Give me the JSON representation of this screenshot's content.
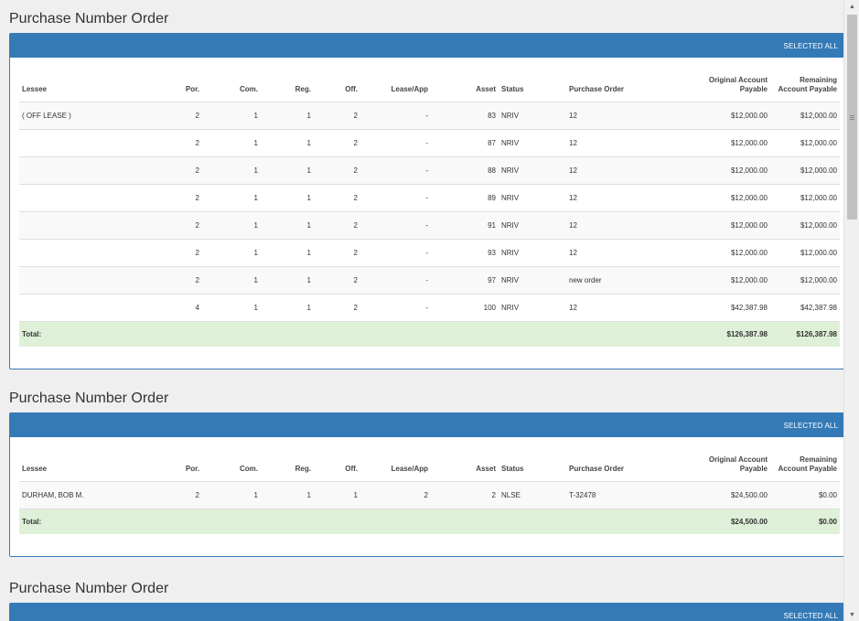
{
  "sections": [
    {
      "title": "Purchase Number Order",
      "select_all_label": "SELECTED ALL",
      "headers": {
        "lessee": "Lessee",
        "por": "Por.",
        "com": "Com.",
        "reg": "Reg.",
        "off": "Off.",
        "lease_app": "Lease/App",
        "asset": "Asset",
        "status": "Status",
        "purchase_order": "Purchase Order",
        "original_line1": "Original Account",
        "original_line2": "Payable",
        "remaining_line1": "Remaining",
        "remaining_line2": "Account Payable"
      },
      "rows": [
        {
          "lessee": "( OFF LEASE )",
          "por": "2",
          "com": "1",
          "reg": "1",
          "off": "2",
          "lease_app": "-",
          "asset": "83",
          "status": "NRIV",
          "purchase_order": "12",
          "original": "$12,000.00",
          "remaining": "$12,000.00"
        },
        {
          "lessee": "",
          "por": "2",
          "com": "1",
          "reg": "1",
          "off": "2",
          "lease_app": "-",
          "asset": "87",
          "status": "NRIV",
          "purchase_order": "12",
          "original": "$12,000.00",
          "remaining": "$12,000.00"
        },
        {
          "lessee": "",
          "por": "2",
          "com": "1",
          "reg": "1",
          "off": "2",
          "lease_app": "-",
          "asset": "88",
          "status": "NRIV",
          "purchase_order": "12",
          "original": "$12,000.00",
          "remaining": "$12,000.00"
        },
        {
          "lessee": "",
          "por": "2",
          "com": "1",
          "reg": "1",
          "off": "2",
          "lease_app": "-",
          "asset": "89",
          "status": "NRIV",
          "purchase_order": "12",
          "original": "$12,000.00",
          "remaining": "$12,000.00"
        },
        {
          "lessee": "",
          "por": "2",
          "com": "1",
          "reg": "1",
          "off": "2",
          "lease_app": "-",
          "asset": "91",
          "status": "NRIV",
          "purchase_order": "12",
          "original": "$12,000.00",
          "remaining": "$12,000.00"
        },
        {
          "lessee": "",
          "por": "2",
          "com": "1",
          "reg": "1",
          "off": "2",
          "lease_app": "-",
          "asset": "93",
          "status": "NRIV",
          "purchase_order": "12",
          "original": "$12,000.00",
          "remaining": "$12,000.00"
        },
        {
          "lessee": "",
          "por": "2",
          "com": "1",
          "reg": "1",
          "off": "2",
          "lease_app": "-",
          "asset": "97",
          "status": "NRIV",
          "purchase_order": "new order",
          "original": "$12,000.00",
          "remaining": "$12,000.00"
        },
        {
          "lessee": "",
          "por": "4",
          "com": "1",
          "reg": "1",
          "off": "2",
          "lease_app": "-",
          "asset": "100",
          "status": "NRIV",
          "purchase_order": "12",
          "original": "$42,387.98",
          "remaining": "$42,387.98"
        }
      ],
      "total": {
        "label": "Total:",
        "original": "$126,387.98",
        "remaining": "$126,387.98"
      }
    },
    {
      "title": "Purchase Number Order",
      "select_all_label": "SELECTED ALL",
      "headers": {
        "lessee": "Lessee",
        "por": "Por.",
        "com": "Com.",
        "reg": "Reg.",
        "off": "Off.",
        "lease_app": "Lease/App",
        "asset": "Asset",
        "status": "Status",
        "purchase_order": "Purchase Order",
        "original_line1": "Original Account",
        "original_line2": "Payable",
        "remaining_line1": "Remaining",
        "remaining_line2": "Account Payable"
      },
      "rows": [
        {
          "lessee": "DURHAM, BOB M.",
          "por": "2",
          "com": "1",
          "reg": "1",
          "off": "1",
          "lease_app": "2",
          "asset": "2",
          "status": "NLSE",
          "purchase_order": "T-32478",
          "original": "$24,500.00",
          "remaining": "$0.00"
        }
      ],
      "total": {
        "label": "Total:",
        "original": "$24,500.00",
        "remaining": "$0.00"
      }
    },
    {
      "title": "Purchase Number Order",
      "select_all_label": "SELECTED ALL"
    }
  ],
  "scrollbar": {
    "up_icon": "scroll-up-arrow-icon",
    "down_icon": "scroll-down-arrow-icon",
    "up_glyph": "▲",
    "down_glyph": "▼"
  },
  "colors": {
    "panel_header": "#337ab7",
    "total_row": "#dff0d8",
    "background": "#efefef"
  }
}
